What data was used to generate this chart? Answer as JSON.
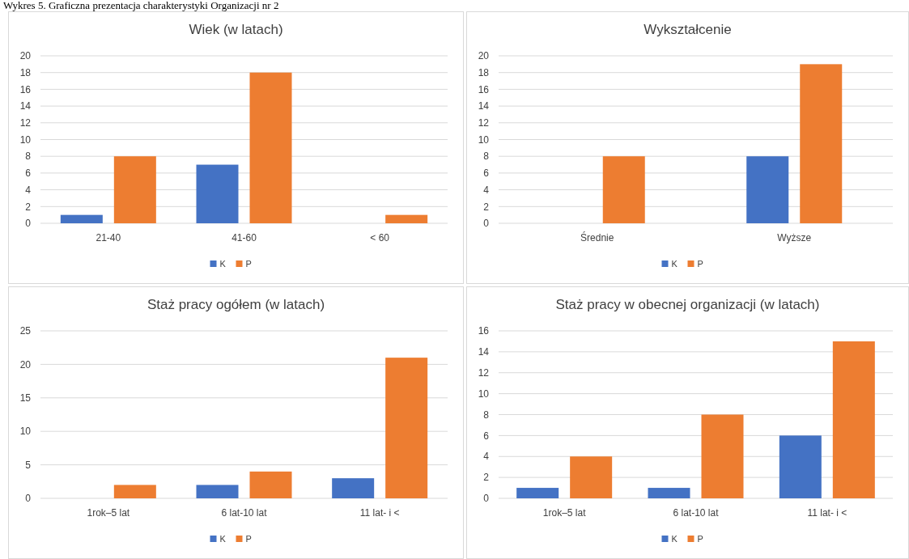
{
  "chart_data": [
    {
      "type": "bar",
      "title": "Wiek (w latach)",
      "annotations": [
        "Wykres 5. Graficzna prezentacja charakterystyki Organizacji nr 2"
      ],
      "categories": [
        "21-40",
        "41-60",
        "< 60"
      ],
      "series": [
        {
          "name": "K",
          "color": "#4472c4",
          "values": [
            1,
            7,
            0
          ]
        },
        {
          "name": "P",
          "color": "#ed7d31",
          "values": [
            8,
            18,
            1
          ]
        }
      ],
      "ylim": [
        0,
        20
      ],
      "yticks": [
        0,
        2,
        4,
        6,
        8,
        10,
        12,
        14,
        16,
        18,
        20
      ],
      "grid": "y",
      "legend": "bottom"
    },
    {
      "type": "bar",
      "title": "Wykształcenie",
      "categories": [
        "Średnie",
        "Wyższe"
      ],
      "series": [
        {
          "name": "K",
          "color": "#4472c4",
          "values": [
            0,
            8
          ]
        },
        {
          "name": "P",
          "color": "#ed7d31",
          "values": [
            8,
            19
          ]
        }
      ],
      "ylim": [
        0,
        20
      ],
      "yticks": [
        0,
        2,
        4,
        6,
        8,
        10,
        12,
        14,
        16,
        18,
        20
      ],
      "grid": "y",
      "legend": "bottom"
    },
    {
      "type": "bar",
      "title": "Staż pracy ogółem (w latach)",
      "categories": [
        "1rok–5 lat",
        "6 lat-10 lat",
        "11 lat- i <"
      ],
      "series": [
        {
          "name": "K",
          "color": "#4472c4",
          "values": [
            0,
            2,
            3
          ]
        },
        {
          "name": "P",
          "color": "#ed7d31",
          "values": [
            2,
            4,
            21
          ]
        }
      ],
      "ylim": [
        0,
        25
      ],
      "yticks": [
        0,
        5,
        10,
        15,
        20,
        25
      ],
      "grid": "y",
      "legend": "bottom"
    },
    {
      "type": "bar",
      "title": "Staż pracy w obecnej organizacji (w latach)",
      "categories": [
        "1rok–5 lat",
        "6 lat-10 lat",
        "11 lat- i <"
      ],
      "series": [
        {
          "name": "K",
          "color": "#4472c4",
          "values": [
            1,
            1,
            6
          ]
        },
        {
          "name": "P",
          "color": "#ed7d31",
          "values": [
            4,
            8,
            15
          ]
        }
      ],
      "ylim": [
        0,
        16
      ],
      "yticks": [
        0,
        2,
        4,
        6,
        8,
        10,
        12,
        14,
        16
      ],
      "grid": "y",
      "legend": "bottom"
    }
  ]
}
